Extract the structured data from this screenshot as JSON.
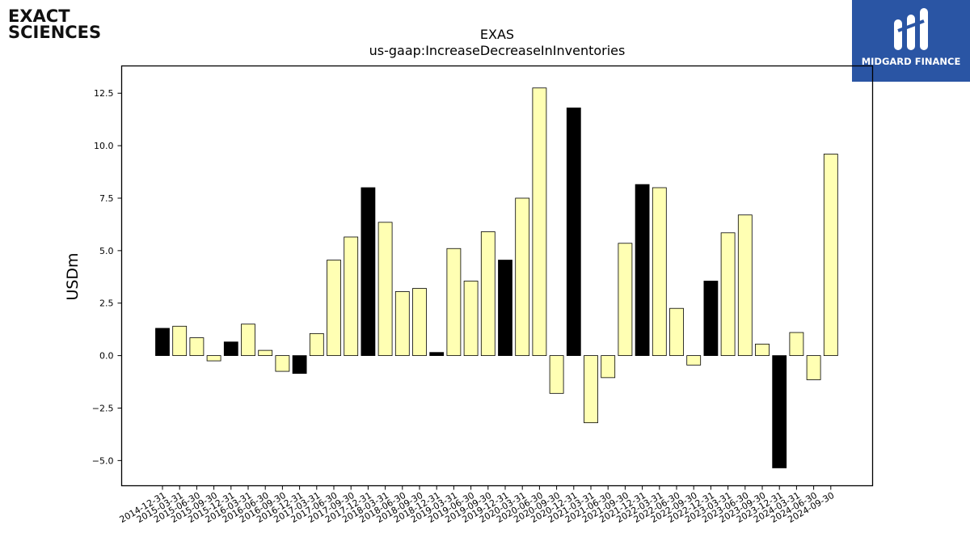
{
  "header": {
    "company_logo_line1": "EXACT",
    "company_logo_line2": "SCIENCES",
    "publisher_logo_text": "MIDGARD FINANCE"
  },
  "chart_data": {
    "type": "bar",
    "title": "EXAS",
    "subtitle": "us-gaap:IncreaseDecreaseInInventories",
    "xlabel": "",
    "ylabel": "USDm",
    "ylim": [
      -6.2,
      13.8
    ],
    "yticks": [
      -5.0,
      -2.5,
      0.0,
      2.5,
      5.0,
      7.5,
      10.0,
      12.5
    ],
    "ytick_labels": [
      "−5.0",
      "−2.5",
      "0.0",
      "2.5",
      "5.0",
      "7.5",
      "10.0",
      "12.5"
    ],
    "grid": false,
    "colors": {
      "quarter": "#ffffb3",
      "year_end": "#000000",
      "edge": "#000000"
    },
    "categories": [
      "2014-12-31",
      "2015-03-31",
      "2015-06-30",
      "2015-09-30",
      "2015-12-31",
      "2016-03-31",
      "2016-06-30",
      "2016-09-30",
      "2016-12-31",
      "2017-03-31",
      "2017-06-30",
      "2017-09-30",
      "2017-12-31",
      "2018-03-31",
      "2018-06-30",
      "2018-09-30",
      "2018-12-31",
      "2019-03-31",
      "2019-06-30",
      "2019-09-30",
      "2019-12-31",
      "2020-03-31",
      "2020-06-30",
      "2020-09-30",
      "2020-12-31",
      "2021-03-31",
      "2021-06-30",
      "2021-09-30",
      "2021-12-31",
      "2022-03-31",
      "2022-06-30",
      "2022-09-30",
      "2022-12-31",
      "2023-03-31",
      "2023-06-30",
      "2023-09-30",
      "2023-12-31",
      "2024-03-31",
      "2024-06-30",
      "2024-09-30"
    ],
    "values": [
      1.3,
      1.4,
      0.85,
      -0.25,
      0.65,
      1.5,
      0.25,
      -0.75,
      -0.85,
      1.05,
      4.55,
      5.65,
      8.0,
      6.35,
      3.05,
      3.2,
      0.15,
      5.1,
      3.55,
      5.9,
      4.55,
      7.5,
      12.75,
      -1.8,
      11.8,
      -3.2,
      -1.05,
      5.35,
      8.15,
      8.0,
      2.25,
      -0.45,
      3.55,
      5.85,
      6.7,
      0.55,
      -5.35,
      1.1,
      -1.15,
      9.6
    ],
    "year_end": [
      true,
      false,
      false,
      false,
      true,
      false,
      false,
      false,
      true,
      false,
      false,
      false,
      true,
      false,
      false,
      false,
      true,
      false,
      false,
      false,
      true,
      false,
      false,
      false,
      true,
      false,
      false,
      false,
      true,
      false,
      false,
      false,
      true,
      false,
      false,
      false,
      true,
      false,
      false,
      false
    ]
  }
}
